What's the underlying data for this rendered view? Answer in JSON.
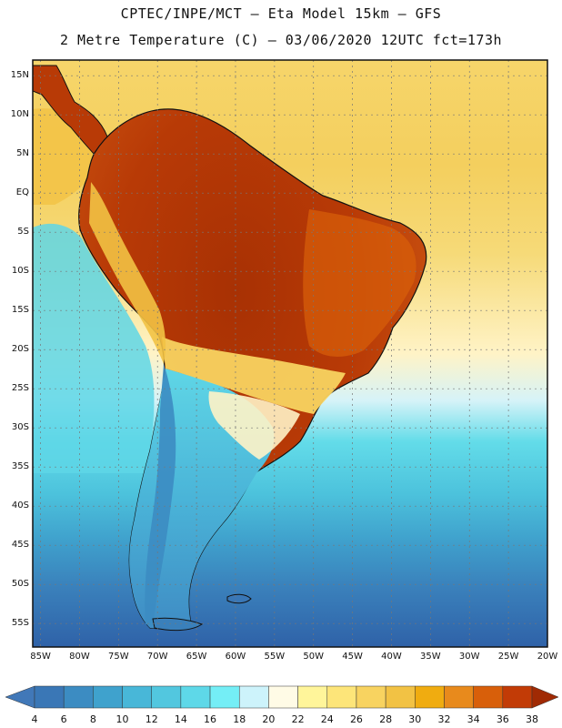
{
  "title": {
    "line1": "CPTEC/INPE/MCT –   Eta Model 15km – GFS",
    "line2": "2 Metre Temperature (C) – 03/06/2020 12UTC fct=173h"
  },
  "map": {
    "lon_range": [
      -86,
      -20
    ],
    "lat_range": [
      -58,
      17
    ],
    "lat_labels": [
      "15N",
      "10N",
      "5N",
      "EQ",
      "5S",
      "10S",
      "15S",
      "20S",
      "25S",
      "30S",
      "35S",
      "40S",
      "45S",
      "50S",
      "55S"
    ],
    "lat_values": [
      15,
      10,
      5,
      0,
      -5,
      -10,
      -15,
      -20,
      -25,
      -30,
      -35,
      -40,
      -45,
      -50,
      -55
    ],
    "lon_labels": [
      "85W",
      "80W",
      "75W",
      "70W",
      "65W",
      "60W",
      "55W",
      "50W",
      "45W",
      "40W",
      "35W",
      "30W",
      "25W",
      "20W"
    ],
    "lon_values": [
      -85,
      -80,
      -75,
      -70,
      -65,
      -60,
      -55,
      -50,
      -45,
      -40,
      -35,
      -30,
      -25,
      -20
    ]
  },
  "colorbar": {
    "labels": [
      "4",
      "6",
      "8",
      "10",
      "12",
      "14",
      "16",
      "18",
      "20",
      "22",
      "24",
      "26",
      "28",
      "30",
      "32",
      "34",
      "36",
      "38"
    ],
    "colors": {
      "below": "#4178b8",
      "b1": "#3a77b6",
      "b2": "#3c8cc2",
      "b3": "#3fa2cd",
      "b4": "#48b7d8",
      "b5": "#52c7df",
      "b6": "#5ed8e8",
      "b7": "#74eef6",
      "b8": "#cdf3fb",
      "b9": "#fffbe6",
      "b10": "#fff59a",
      "b11": "#fde579",
      "b12": "#f8d360",
      "b13": "#f2c244",
      "b14": "#f0ac10",
      "b15": "#e88a1c",
      "b16": "#d85f0a",
      "b17": "#c23b06",
      "above": "#a02a04"
    }
  }
}
